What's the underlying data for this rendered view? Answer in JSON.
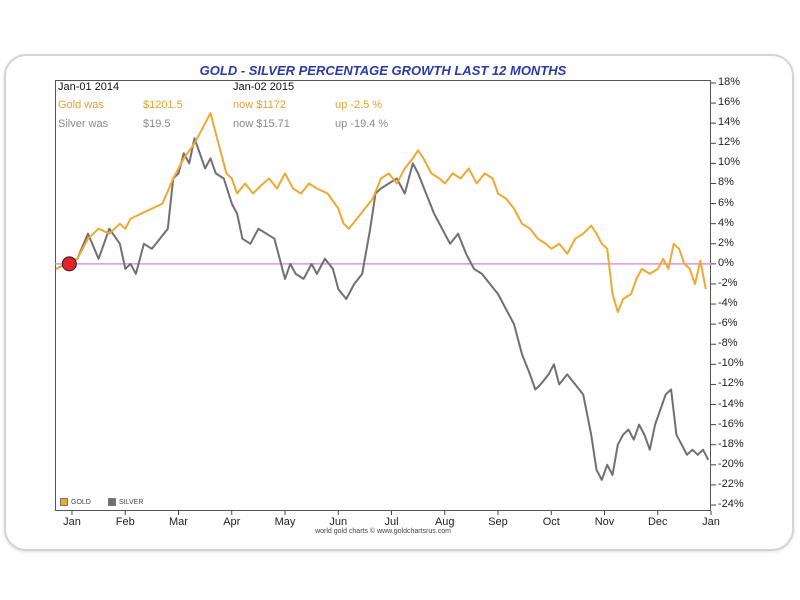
{
  "chart_data": {
    "type": "line",
    "title": "GOLD - SILVER PERCENTAGE GROWTH LAST 12 MONTHS",
    "xlabel": "",
    "ylabel": "",
    "ylim": [
      -24,
      18
    ],
    "y_ticks": [
      "18%",
      "16%",
      "14%",
      "12%",
      "10%",
      "8%",
      "6%",
      "4%",
      "2%",
      "0%",
      "-2%",
      "-4%",
      "-6%",
      "-8%",
      "-10%",
      "-12%",
      "-14%",
      "-16%",
      "-18%",
      "-20%",
      "-22%",
      "-24%"
    ],
    "x_ticks": [
      "Jan",
      "Feb",
      "Mar",
      "Apr",
      "May",
      "Jun",
      "Jul",
      "Aug",
      "Sep",
      "Oct",
      "Nov",
      "Dec",
      "Jan"
    ],
    "x_range": [
      0,
      12
    ],
    "series": [
      {
        "name": "GOLD",
        "color": "#f0a830",
        "points": [
          [
            -0.3,
            -0.5
          ],
          [
            0.1,
            0.5
          ],
          [
            0.3,
            2.5
          ],
          [
            0.5,
            3.5
          ],
          [
            0.7,
            3.0
          ],
          [
            0.9,
            4.0
          ],
          [
            1.0,
            3.5
          ],
          [
            1.1,
            4.5
          ],
          [
            1.3,
            5.0
          ],
          [
            1.5,
            5.5
          ],
          [
            1.7,
            6.0
          ],
          [
            1.9,
            8.5
          ],
          [
            2.1,
            10.5
          ],
          [
            2.3,
            12.0
          ],
          [
            2.45,
            13.5
          ],
          [
            2.6,
            15.0
          ],
          [
            2.75,
            12.0
          ],
          [
            2.9,
            9.0
          ],
          [
            3.0,
            8.5
          ],
          [
            3.1,
            7.0
          ],
          [
            3.25,
            8.0
          ],
          [
            3.4,
            7.0
          ],
          [
            3.55,
            7.8
          ],
          [
            3.7,
            8.5
          ],
          [
            3.85,
            7.5
          ],
          [
            4.0,
            9.0
          ],
          [
            4.15,
            7.5
          ],
          [
            4.3,
            7.0
          ],
          [
            4.45,
            8.0
          ],
          [
            4.6,
            7.5
          ],
          [
            4.8,
            7.0
          ],
          [
            5.0,
            5.5
          ],
          [
            5.1,
            4.0
          ],
          [
            5.2,
            3.5
          ],
          [
            5.35,
            4.5
          ],
          [
            5.5,
            5.5
          ],
          [
            5.65,
            6.5
          ],
          [
            5.8,
            8.5
          ],
          [
            5.95,
            9.0
          ],
          [
            6.1,
            8.0
          ],
          [
            6.25,
            9.5
          ],
          [
            6.4,
            10.5
          ],
          [
            6.5,
            11.3
          ],
          [
            6.6,
            10.5
          ],
          [
            6.75,
            9.0
          ],
          [
            6.9,
            8.5
          ],
          [
            7.0,
            8.0
          ],
          [
            7.15,
            9.0
          ],
          [
            7.3,
            8.5
          ],
          [
            7.45,
            9.5
          ],
          [
            7.6,
            8.0
          ],
          [
            7.75,
            9.0
          ],
          [
            7.9,
            8.5
          ],
          [
            8.0,
            7.0
          ],
          [
            8.15,
            6.5
          ],
          [
            8.3,
            5.5
          ],
          [
            8.45,
            4.0
          ],
          [
            8.6,
            3.5
          ],
          [
            8.75,
            2.5
          ],
          [
            8.9,
            2.0
          ],
          [
            9.0,
            1.5
          ],
          [
            9.15,
            2.0
          ],
          [
            9.3,
            1.0
          ],
          [
            9.45,
            2.5
          ],
          [
            9.6,
            3.0
          ],
          [
            9.75,
            3.8
          ],
          [
            9.85,
            3.0
          ],
          [
            9.95,
            2.0
          ],
          [
            10.05,
            1.5
          ],
          [
            10.15,
            -3.0
          ],
          [
            10.25,
            -4.8
          ],
          [
            10.35,
            -3.5
          ],
          [
            10.5,
            -3.0
          ],
          [
            10.6,
            -1.5
          ],
          [
            10.7,
            -0.5
          ],
          [
            10.85,
            -1.0
          ],
          [
            11.0,
            -0.5
          ],
          [
            11.1,
            0.5
          ],
          [
            11.2,
            -0.5
          ],
          [
            11.3,
            2.0
          ],
          [
            11.4,
            1.5
          ],
          [
            11.5,
            0.0
          ],
          [
            11.6,
            -0.5
          ],
          [
            11.7,
            -2.0
          ],
          [
            11.8,
            0.3
          ],
          [
            11.9,
            -2.5
          ]
        ]
      },
      {
        "name": "SILVER",
        "color": "#707070",
        "points": [
          [
            -0.3,
            -0.5
          ],
          [
            0.1,
            0.5
          ],
          [
            0.3,
            3.0
          ],
          [
            0.5,
            0.5
          ],
          [
            0.7,
            3.5
          ],
          [
            0.9,
            2.0
          ],
          [
            1.0,
            -0.5
          ],
          [
            1.1,
            0.0
          ],
          [
            1.2,
            -1.0
          ],
          [
            1.35,
            2.0
          ],
          [
            1.5,
            1.5
          ],
          [
            1.65,
            2.5
          ],
          [
            1.8,
            3.5
          ],
          [
            1.9,
            8.5
          ],
          [
            2.0,
            9.0
          ],
          [
            2.1,
            11.0
          ],
          [
            2.2,
            10.0
          ],
          [
            2.3,
            12.5
          ],
          [
            2.4,
            11.0
          ],
          [
            2.5,
            9.5
          ],
          [
            2.6,
            10.5
          ],
          [
            2.7,
            9.0
          ],
          [
            2.85,
            8.5
          ],
          [
            3.0,
            6.0
          ],
          [
            3.1,
            5.0
          ],
          [
            3.2,
            2.5
          ],
          [
            3.35,
            2.0
          ],
          [
            3.5,
            3.5
          ],
          [
            3.65,
            3.0
          ],
          [
            3.8,
            2.5
          ],
          [
            3.9,
            0.5
          ],
          [
            4.0,
            -1.5
          ],
          [
            4.1,
            0.0
          ],
          [
            4.2,
            -1.0
          ],
          [
            4.35,
            -1.5
          ],
          [
            4.5,
            0.0
          ],
          [
            4.6,
            -1.0
          ],
          [
            4.75,
            0.5
          ],
          [
            4.9,
            -0.5
          ],
          [
            5.0,
            -2.5
          ],
          [
            5.15,
            -3.5
          ],
          [
            5.3,
            -2.0
          ],
          [
            5.45,
            -1.0
          ],
          [
            5.6,
            3.5
          ],
          [
            5.7,
            7.0
          ],
          [
            5.8,
            7.5
          ],
          [
            5.95,
            8.0
          ],
          [
            6.1,
            8.5
          ],
          [
            6.25,
            7.0
          ],
          [
            6.4,
            10.0
          ],
          [
            6.5,
            9.0
          ],
          [
            6.65,
            7.0
          ],
          [
            6.8,
            5.0
          ],
          [
            6.95,
            3.5
          ],
          [
            7.1,
            2.0
          ],
          [
            7.25,
            3.0
          ],
          [
            7.4,
            1.0
          ],
          [
            7.55,
            -0.5
          ],
          [
            7.7,
            -1.0
          ],
          [
            7.85,
            -2.0
          ],
          [
            8.0,
            -3.0
          ],
          [
            8.15,
            -4.5
          ],
          [
            8.3,
            -6.0
          ],
          [
            8.45,
            -9.0
          ],
          [
            8.6,
            -11.0
          ],
          [
            8.7,
            -12.5
          ],
          [
            8.8,
            -12.0
          ],
          [
            8.95,
            -11.0
          ],
          [
            9.05,
            -10.0
          ],
          [
            9.15,
            -12.0
          ],
          [
            9.3,
            -11.0
          ],
          [
            9.45,
            -12.0
          ],
          [
            9.6,
            -13.0
          ],
          [
            9.75,
            -17.0
          ],
          [
            9.85,
            -20.5
          ],
          [
            9.95,
            -21.5
          ],
          [
            10.05,
            -20.0
          ],
          [
            10.15,
            -21.0
          ],
          [
            10.25,
            -18.0
          ],
          [
            10.35,
            -17.0
          ],
          [
            10.45,
            -16.5
          ],
          [
            10.55,
            -17.5
          ],
          [
            10.65,
            -16.0
          ],
          [
            10.75,
            -17.0
          ],
          [
            10.85,
            -18.5
          ],
          [
            10.95,
            -16.0
          ],
          [
            11.05,
            -14.5
          ],
          [
            11.15,
            -13.0
          ],
          [
            11.25,
            -12.5
          ],
          [
            11.35,
            -17.0
          ],
          [
            11.45,
            -18.0
          ],
          [
            11.55,
            -19.0
          ],
          [
            11.65,
            -18.5
          ],
          [
            11.75,
            -19.0
          ],
          [
            11.85,
            -18.5
          ],
          [
            11.95,
            -19.5
          ]
        ]
      }
    ],
    "reference_line": {
      "y": 0,
      "color": "#e090e0"
    },
    "start_marker": {
      "x": -0.05,
      "y": 0,
      "color": "#e8202a"
    },
    "info": {
      "date_start": "Jan-01  2014",
      "date_end": "Jan-02  2015",
      "gold_label": "Gold was",
      "gold_start": "$1201.5",
      "gold_now": "now $1172",
      "gold_change": "up -2.5 %",
      "silver_label": "Silver was",
      "silver_start": "$19.5",
      "silver_now": "now $15.71",
      "silver_change": "up -19.4 %"
    },
    "legend": [
      {
        "label": "GOLD",
        "color": "#f0a830"
      },
      {
        "label": "SILVER",
        "color": "#707070"
      }
    ],
    "credit": "world gold charts © www.goldchartsrus.com"
  }
}
